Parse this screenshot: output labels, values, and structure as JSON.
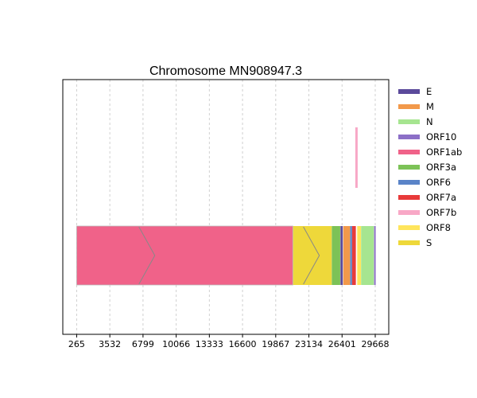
{
  "chart_data": {
    "type": "genome-map",
    "title": "Chromosome MN908947.3",
    "x_ticks": [
      265,
      3532,
      6799,
      10066,
      13333,
      16600,
      19867,
      23134,
      26401,
      29668
    ],
    "xlim": [
      -1100,
      31000
    ],
    "grid": "vertical dashed",
    "legend_position": "right",
    "genes": [
      {
        "name": "E",
        "color": "#5b4a9b"
      },
      {
        "name": "M",
        "color": "#f2994a"
      },
      {
        "name": "N",
        "color": "#a6e590"
      },
      {
        "name": "ORF10",
        "color": "#8c6fc7"
      },
      {
        "name": "ORF1ab",
        "color": "#f06289"
      },
      {
        "name": "ORF3a",
        "color": "#7cc257"
      },
      {
        "name": "ORF6",
        "color": "#5a84c8"
      },
      {
        "name": "ORF7a",
        "color": "#e83a3a"
      },
      {
        "name": "ORF7b",
        "color": "#f8a8c6"
      },
      {
        "name": "ORF8",
        "color": "#ffe55c"
      },
      {
        "name": "S",
        "color": "#eed83a"
      }
    ],
    "features": [
      {
        "gene": "ORF1ab",
        "start": 265,
        "end": 21555,
        "track": 0
      },
      {
        "gene": "S",
        "start": 21562,
        "end": 25384,
        "track": 0
      },
      {
        "gene": "ORF3a",
        "start": 25392,
        "end": 26220,
        "track": 0
      },
      {
        "gene": "E",
        "start": 26244,
        "end": 26472,
        "track": 0
      },
      {
        "gene": "M",
        "start": 26522,
        "end": 27191,
        "track": 0
      },
      {
        "gene": "ORF6",
        "start": 27201,
        "end": 27387,
        "track": 0
      },
      {
        "gene": "ORF7a",
        "start": 27393,
        "end": 27759,
        "track": 0
      },
      {
        "gene": "ORF7b",
        "start": 27755,
        "end": 27887,
        "track": 1
      },
      {
        "gene": "ORF8",
        "start": 27893,
        "end": 28259,
        "track": 0
      },
      {
        "gene": "N",
        "start": 28273,
        "end": 29533,
        "track": 0
      },
      {
        "gene": "ORF10",
        "start": 29557,
        "end": 29674,
        "track": 0
      }
    ],
    "chevrons": [
      {
        "gene": "ORF1ab",
        "position": 7100
      },
      {
        "gene": "S",
        "position": 23300
      }
    ]
  }
}
